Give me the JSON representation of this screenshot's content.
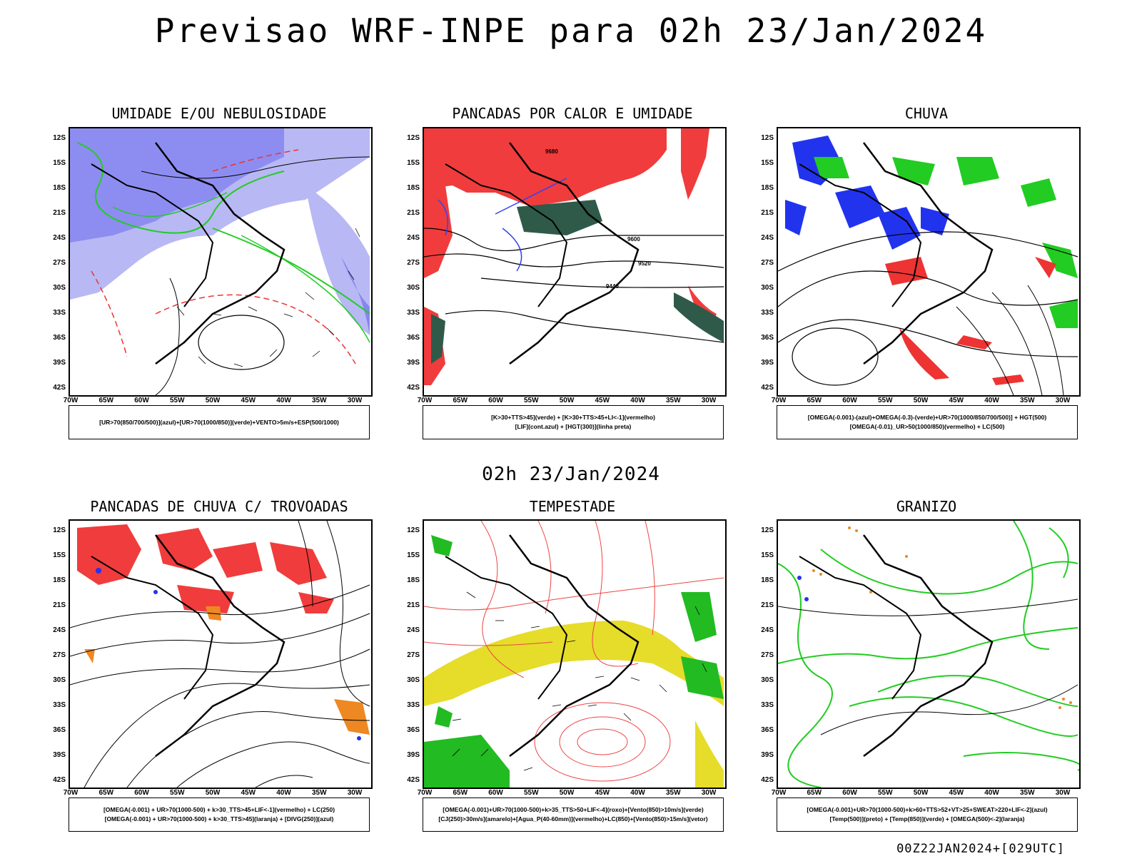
{
  "title": "Previsao WRF-INPE  para 02h 23/Jan/2024",
  "subtitle": "02h 23/Jan/2024",
  "footer": "00Z22JAN2024+[029UTC]",
  "axes": {
    "lat_labels": [
      "12S",
      "15S",
      "18S",
      "21S",
      "24S",
      "27S",
      "30S",
      "33S",
      "36S",
      "39S",
      "42S"
    ],
    "lon_labels": [
      "70W",
      "65W",
      "60W",
      "55W",
      "50W",
      "45W",
      "40W",
      "35W",
      "30W"
    ]
  },
  "panels": [
    {
      "title": "UMIDADE E/OU NEBULOSIDADE",
      "legend": [
        "[UR>70(850/700/500)](azul)+[UR>70(1000/850)](verde)+VENTO>5m/s+ESP(500/1000)"
      ],
      "colors": {
        "blue": "#7070ee",
        "lightblue": "#b8b8f4",
        "green": "#22cc22",
        "red": "#ee3333"
      }
    },
    {
      "title": "PANCADAS POR CALOR E UMIDADE",
      "legend": [
        "[K>30+TTS>45](verde) + [K>30+TTS>45+LI<-1](vermelho)",
        "[LIF](cont.azul) + [HGT(300)](linha preta)"
      ],
      "contour_labels": [
        "9680",
        "9600",
        "9520",
        "9440"
      ],
      "colors": {
        "red": "#f03c3c",
        "darkgreen": "#2f5a4a",
        "blue": "#3344ee"
      }
    },
    {
      "title": "CHUVA",
      "legend": [
        "[OMEGA(-0.001)-(azul)+OMEGA(-0.3)-(verde)+UR>70(1000/850/700/500)] + HGT(500)",
        "[OMEGA(-0.01)_UR>50(1000/850)(vermelho) + LC(500)"
      ],
      "colors": {
        "blue": "#2233ee",
        "green": "#22cc22",
        "red": "#ee3333"
      }
    },
    {
      "title": "PANCADAS DE CHUVA C/ TROVOADAS",
      "legend": [
        "[OMEGA(-0.001) + UR>70(1000-500) + k>30_TTS>45+LIF<-1](vermelho) + LC(250)",
        "[OMEGA(-0.001) + UR>70(1000-500) + k>30_TTS>45](laranja) + [DIVG(250)](azul)"
      ],
      "colors": {
        "red": "#f03c3c",
        "orange": "#ee8822",
        "blue": "#2233ee"
      }
    },
    {
      "title": "TEMPESTADE",
      "legend": [
        "[OMEGA(-0.001)+UR>70(1000-500)+k>35_TTS>50+LIF<-4](roxo)+[Vento(850)>10m/s](verde)",
        "[CJ(250)>30m/s](amarelo)+[Agua_P(40-60mm)](vermelho)+LC(850)+[Vento(850)>15m/s](vetor)"
      ],
      "colors": {
        "yellow": "#e6dc2a",
        "green": "#22bb22",
        "red": "#ee4444"
      }
    },
    {
      "title": "GRANIZO",
      "legend": [
        "[OMEGA(-0.001)+UR>70(1000-500)+k>60+TTS>52+VT>25+SWEAT>220+LIF<-2](azul)",
        "[Temp(500)](preto) + [Temp(850)](verde) + [OMEGA(500)<-2](laranja)"
      ],
      "colors": {
        "green": "#22cc22",
        "orange": "#ee8822",
        "blue": "#2233ee"
      }
    }
  ]
}
